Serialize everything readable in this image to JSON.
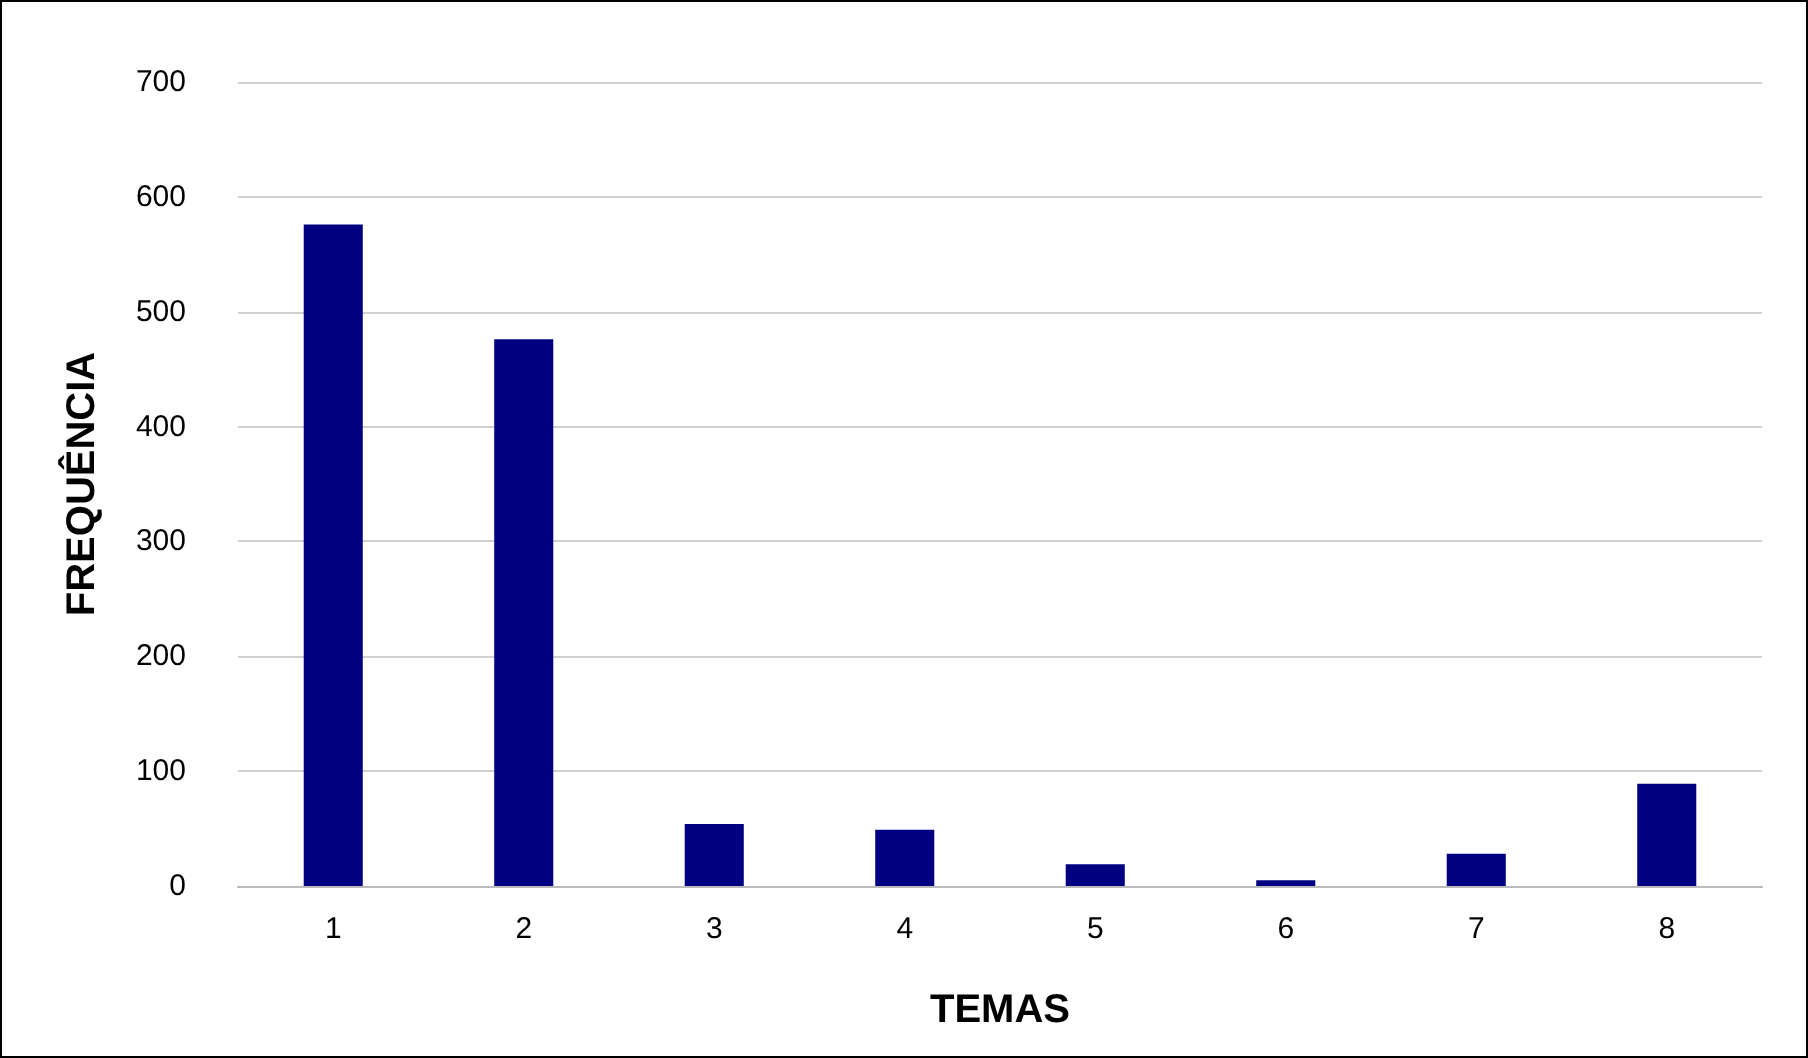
{
  "chart_data": {
    "type": "bar",
    "xlabel": "TEMAS",
    "ylabel": "FREQUÊNCIA",
    "categories": [
      "1",
      "2",
      "3",
      "4",
      "5",
      "6",
      "7",
      "8"
    ],
    "values": [
      576,
      476,
      54,
      49,
      19,
      5,
      28,
      89
    ],
    "color": "#000080",
    "ylim": [
      0,
      700
    ],
    "yticks": [
      0,
      100,
      200,
      300,
      400,
      500,
      600,
      700
    ],
    "grid": "y"
  }
}
